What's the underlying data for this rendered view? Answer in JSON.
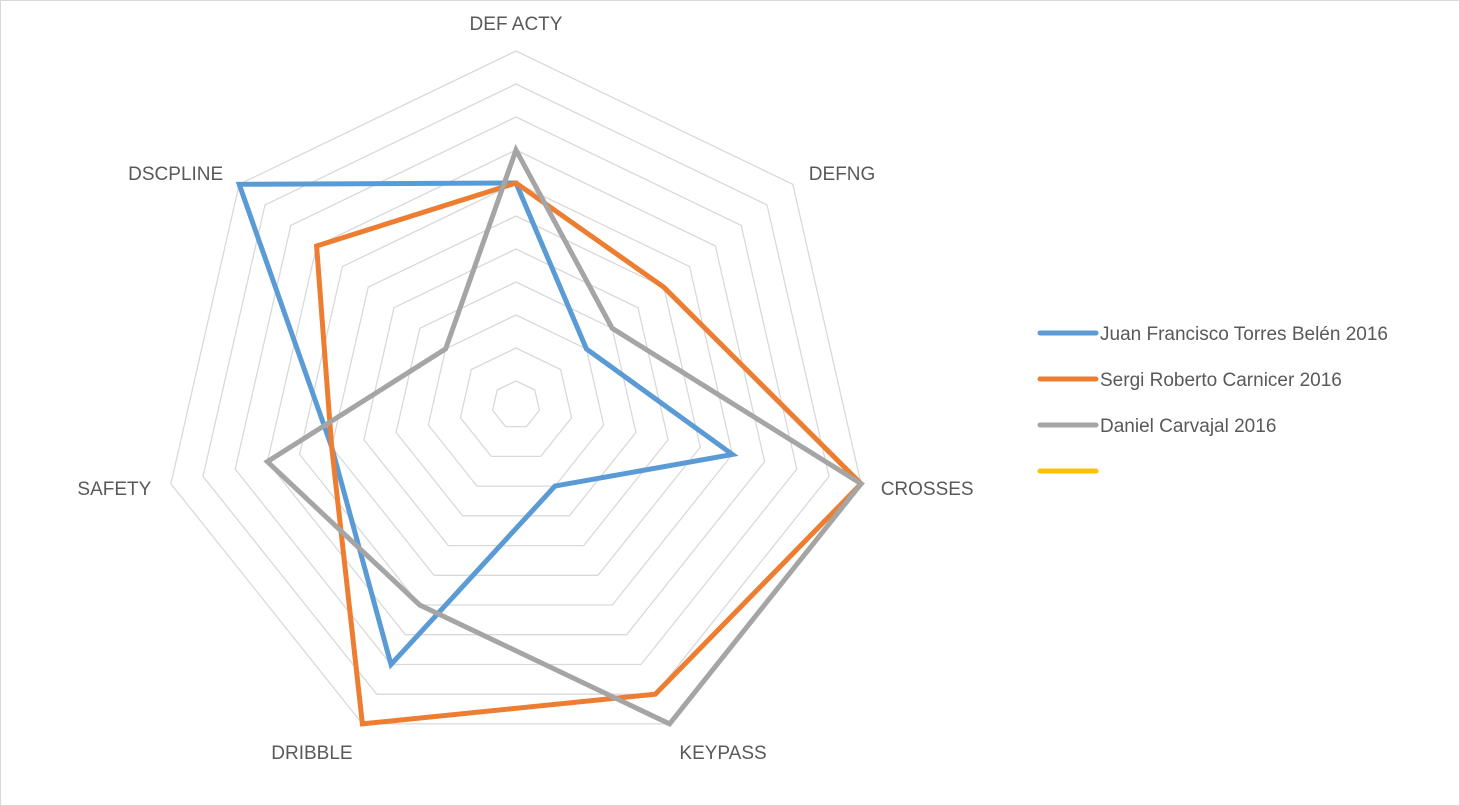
{
  "chart_data": {
    "type": "radar",
    "title": "",
    "axes": [
      "DEF ACTY",
      "DEFNG",
      "CROSSES",
      "KEYPASS",
      "DRIBBLE",
      "SAFETY",
      "DSCPLINE"
    ],
    "rmin": 0,
    "rmax": 10,
    "grid_rings": 10,
    "legend_position": "right",
    "series": [
      {
        "name": "Juan Francisco Torres Belén 2016",
        "color": "#5b9bd5",
        "values": [
          6,
          2,
          6,
          2,
          8,
          5,
          10
        ]
      },
      {
        "name": "Sergi Roberto Carnicer 2016",
        "color": "#ed7d31",
        "values": [
          6,
          5,
          10,
          9,
          10,
          5,
          7
        ]
      },
      {
        "name": "Daniel Carvajal 2016",
        "color": "#a5a5a5",
        "values": [
          7,
          3,
          10,
          10,
          6,
          7,
          2
        ]
      },
      {
        "name": "",
        "color": "#ffc000",
        "values": []
      }
    ]
  }
}
